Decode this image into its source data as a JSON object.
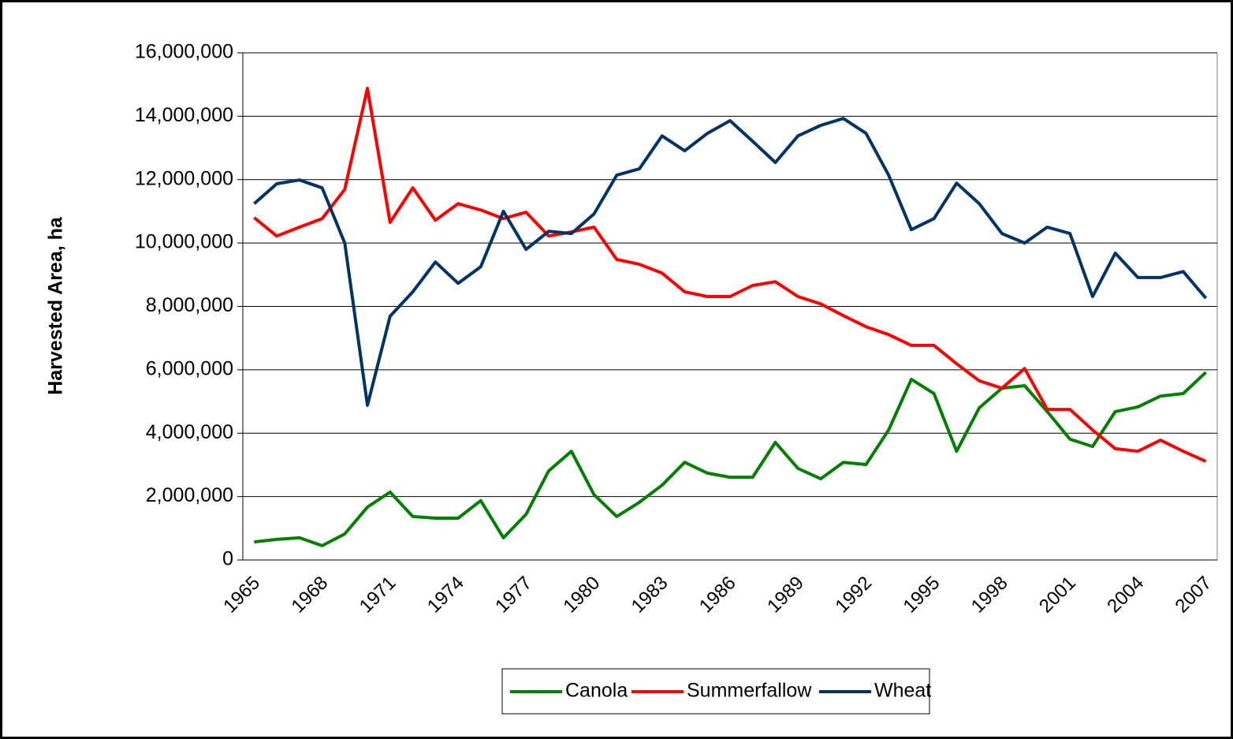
{
  "chart_data": {
    "type": "line",
    "y_label": "Harvested Area, ha",
    "categories": [
      "1965",
      null,
      null,
      "1968",
      null,
      null,
      "1971",
      null,
      null,
      "1974",
      null,
      null,
      "1977",
      null,
      null,
      "1980",
      null,
      null,
      "1983",
      null,
      null,
      "1986",
      null,
      null,
      "1989",
      null,
      null,
      "1992",
      null,
      null,
      "1995",
      null,
      null,
      "1998",
      null,
      null,
      "2001",
      null,
      null,
      "2004",
      null,
      null,
      "2007"
    ],
    "series": [
      {
        "name": "Canola",
        "color": "#008000",
        "values": [
          570000,
          650000,
          700000,
          450000,
          820000,
          1670000,
          2140000,
          1370000,
          1320000,
          1320000,
          1870000,
          700000,
          1440000,
          2810000,
          3430000,
          2060000,
          1370000,
          1820000,
          2360000,
          3080000,
          2740000,
          2610000,
          2610000,
          3710000,
          2890000,
          2560000,
          3080000,
          3010000,
          4100000,
          5700000,
          5250000,
          3430000,
          4800000,
          5420000,
          5500000,
          4680000,
          3810000,
          3580000,
          4680000,
          4830000,
          5170000,
          5250000,
          5920000
        ]
      },
      {
        "name": "Summerfallow",
        "color": "#ff0000",
        "values": [
          10800000,
          10220000,
          10500000,
          10770000,
          11690000,
          14880000,
          10650000,
          11740000,
          10720000,
          11240000,
          11040000,
          10770000,
          10970000,
          10220000,
          10350000,
          10500000,
          9480000,
          9330000,
          9050000,
          8460000,
          8310000,
          8310000,
          8660000,
          8780000,
          8310000,
          8080000,
          7710000,
          7360000,
          7110000,
          6770000,
          6770000,
          6190000,
          5650000,
          5420000,
          6040000,
          4750000,
          4750000,
          4100000,
          3510000,
          3430000,
          3780000,
          3430000,
          3110000
        ]
      },
      {
        "name": "Wheat",
        "color": "#003366",
        "values": [
          11240000,
          11870000,
          11990000,
          11740000,
          10000000,
          4880000,
          7690000,
          8460000,
          9400000,
          8730000,
          9250000,
          11000000,
          9800000,
          10370000,
          10300000,
          10920000,
          12140000,
          12340000,
          13380000,
          12910000,
          13460000,
          13860000,
          13210000,
          12540000,
          13380000,
          13710000,
          13930000,
          13460000,
          12140000,
          10420000,
          10770000,
          11890000,
          11240000,
          10300000,
          10000000,
          10500000,
          10300000,
          8310000,
          9680000,
          8910000,
          8910000,
          9100000,
          8260000
        ]
      }
    ],
    "ylim": [
      0,
      16000000
    ],
    "yticks": [
      0,
      {
        "value": 2000000,
        "label": "2,000,000"
      },
      {
        "value": 4000000,
        "label": "4,000,000"
      },
      {
        "value": 6000000,
        "label": "6,000,000"
      },
      {
        "value": 8000000,
        "label": "8,000,000"
      },
      {
        "value": 10000000,
        "label": "10,000,000"
      },
      {
        "value": 12000000,
        "label": "12,000,000"
      },
      {
        "value": 14000000,
        "label": "14,000,000"
      },
      {
        "value": 16000000,
        "label": "16,000,000"
      }
    ],
    "grid": true,
    "legend": "bottom"
  }
}
